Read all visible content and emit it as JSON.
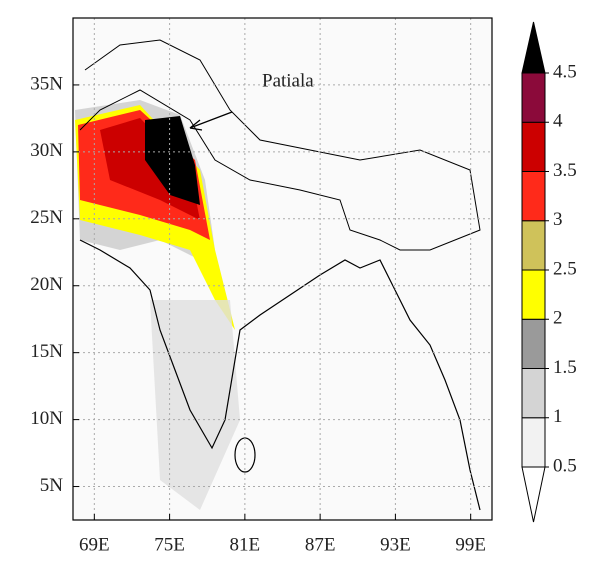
{
  "map": {
    "xlim": [
      67.3,
      100.7
    ],
    "ylim": [
      2.5,
      40
    ],
    "xticks": [
      {
        "value": 69,
        "label": "69E"
      },
      {
        "value": 75,
        "label": "75E"
      },
      {
        "value": 81,
        "label": "81E"
      },
      {
        "value": 87,
        "label": "87E"
      },
      {
        "value": 93,
        "label": "93E"
      },
      {
        "value": 99,
        "label": "99E"
      }
    ],
    "yticks": [
      {
        "value": 5,
        "label": "5N"
      },
      {
        "value": 10,
        "label": "10N"
      },
      {
        "value": 15,
        "label": "15N"
      },
      {
        "value": 20,
        "label": "20N"
      },
      {
        "value": 25,
        "label": "25N"
      },
      {
        "value": 30,
        "label": "30N"
      },
      {
        "value": 35,
        "label": "35N"
      }
    ],
    "grid": true,
    "annotation": "Patiala"
  },
  "colorbar": {
    "levels": [
      0.5,
      1,
      1.5,
      2,
      2.5,
      3,
      3.5,
      4,
      4.5
    ],
    "colors": [
      "#ffffff",
      "#f2f2f2",
      "#d4d4d4",
      "#9a9a9a",
      "#ffff00",
      "#cfc25a",
      "#ff2a1a",
      "#cc0000",
      "#8b0a3a",
      "#000000"
    ]
  }
}
